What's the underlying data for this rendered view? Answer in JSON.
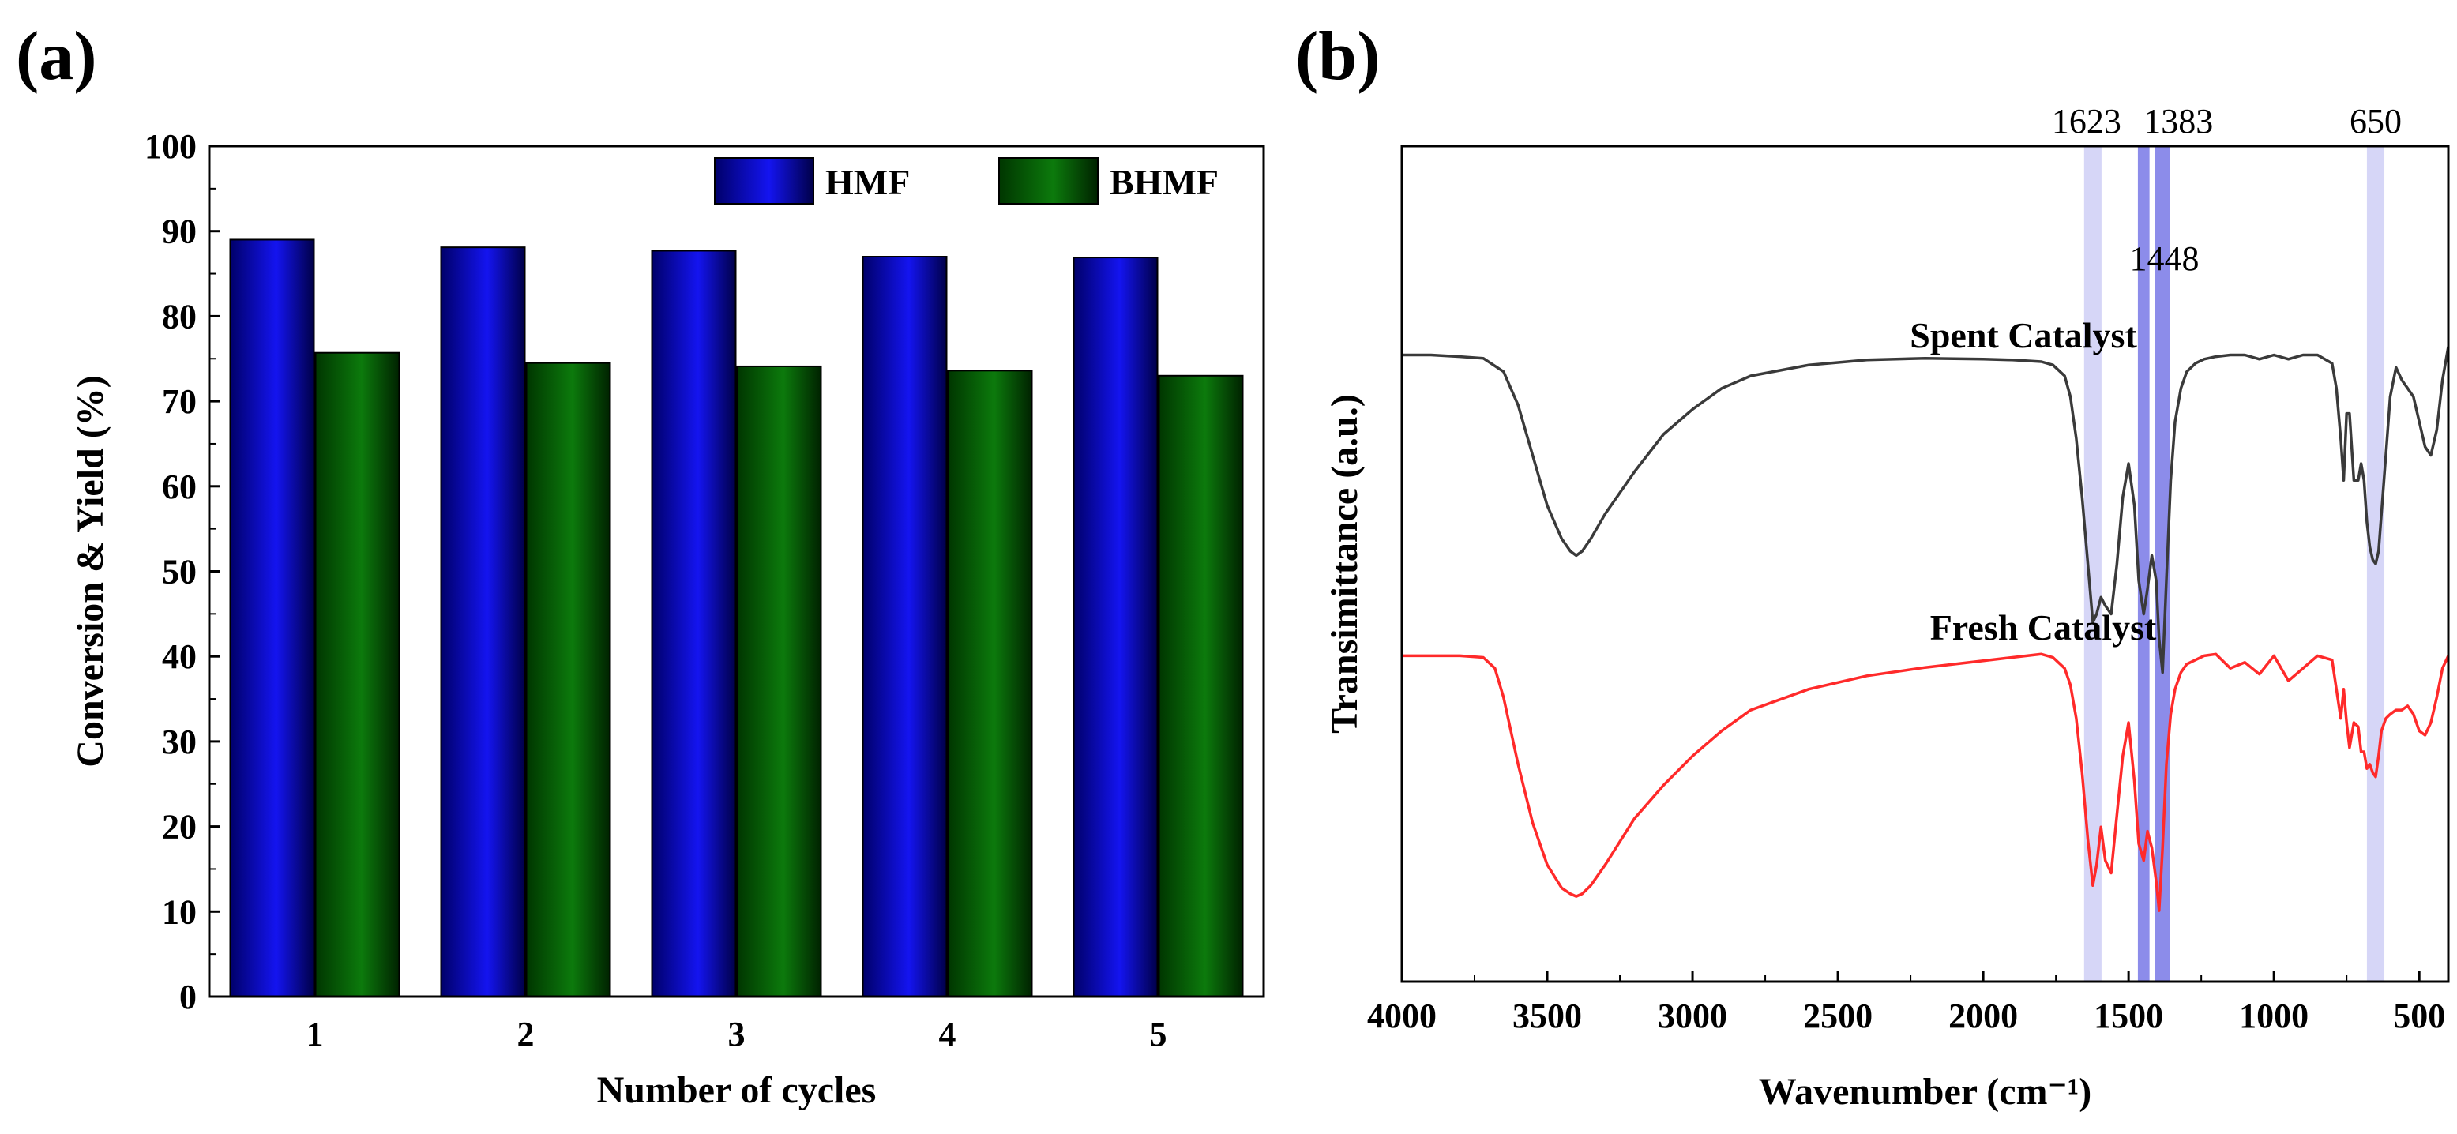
{
  "panel_a": {
    "label": "(a)",
    "colors": {
      "HMF": "#1010e8",
      "BHMF": "#0a6e0a"
    }
  },
  "panel_b": {
    "label": "(b)",
    "colors": {
      "spent": "#3a3a3a",
      "fresh": "#ff2a2a",
      "band_light": "#c8c8f4",
      "band_dark": "#7878e6"
    }
  },
  "chart_data": [
    {
      "type": "bar",
      "title": "",
      "xlabel": "Number of cycles",
      "ylabel": "Conversion & Yield (%)",
      "ylim": [
        0,
        100
      ],
      "yticks": [
        0,
        10,
        20,
        30,
        40,
        50,
        60,
        70,
        80,
        90,
        100
      ],
      "categories": [
        "1",
        "2",
        "3",
        "4",
        "5"
      ],
      "legend_position": "top-right",
      "series": [
        {
          "name": "HMF",
          "values": [
            89.0,
            88.1,
            87.7,
            87.0,
            86.9
          ]
        },
        {
          "name": "BHMF",
          "values": [
            75.7,
            74.5,
            74.1,
            73.6,
            73.0
          ]
        }
      ]
    },
    {
      "type": "line",
      "title": "",
      "xlabel": "Wavenumber (cm⁻¹)",
      "ylabel": "Transimittance (a.u.)",
      "xlim": [
        4000,
        400
      ],
      "xticks": [
        4000,
        3500,
        3000,
        2500,
        2000,
        1500,
        1000,
        500
      ],
      "ylim": [
        0,
        100
      ],
      "y_ticks_shown": false,
      "series": [
        {
          "name": "Spent Catalyst",
          "x": [
            4000,
            3900,
            3800,
            3720,
            3650,
            3600,
            3550,
            3500,
            3450,
            3420,
            3400,
            3380,
            3350,
            3300,
            3200,
            3100,
            3000,
            2900,
            2800,
            2600,
            2400,
            2200,
            2000,
            1900,
            1800,
            1760,
            1720,
            1700,
            1680,
            1660,
            1640,
            1623,
            1610,
            1595,
            1580,
            1560,
            1540,
            1520,
            1500,
            1480,
            1465,
            1448,
            1435,
            1420,
            1405,
            1395,
            1383,
            1370,
            1355,
            1340,
            1320,
            1300,
            1270,
            1240,
            1200,
            1150,
            1100,
            1050,
            1000,
            950,
            900,
            850,
            800,
            785,
            770,
            760,
            750,
            740,
            725,
            710,
            700,
            690,
            680,
            670,
            660,
            650,
            640,
            630,
            615,
            600,
            580,
            560,
            540,
            520,
            500,
            480,
            460,
            440,
            420,
            400
          ],
          "y": [
            75.0,
            75.0,
            74.8,
            74.6,
            73.0,
            69.0,
            63.0,
            57.0,
            53.0,
            51.5,
            51.0,
            51.5,
            53.0,
            56.0,
            61.0,
            65.5,
            68.5,
            71.0,
            72.5,
            73.8,
            74.4,
            74.6,
            74.5,
            74.4,
            74.2,
            73.8,
            72.5,
            70.0,
            65.0,
            58.0,
            50.0,
            43.0,
            44.0,
            46.0,
            45.0,
            44.0,
            50.0,
            58.0,
            62.0,
            57.0,
            48.0,
            44.0,
            47.0,
            51.0,
            48.0,
            41.0,
            37.0,
            48.0,
            60.0,
            67.0,
            71.0,
            73.0,
            74.0,
            74.5,
            74.8,
            75.0,
            75.0,
            74.5,
            75.0,
            74.5,
            75.0,
            75.0,
            74.0,
            71.0,
            65.0,
            60.0,
            68.0,
            68.0,
            60.0,
            60.0,
            62.0,
            60.0,
            55.0,
            52.0,
            50.5,
            50.0,
            51.5,
            56.0,
            63.0,
            70.0,
            73.5,
            72.0,
            71.0,
            70.0,
            67.0,
            64.0,
            63.0,
            66.0,
            72.0,
            76.0
          ]
        },
        {
          "name": "Fresh Catalyst",
          "x": [
            4000,
            3900,
            3800,
            3720,
            3680,
            3650,
            3600,
            3550,
            3500,
            3450,
            3420,
            3400,
            3380,
            3350,
            3300,
            3200,
            3100,
            3000,
            2900,
            2800,
            2600,
            2400,
            2200,
            2000,
            1900,
            1800,
            1760,
            1720,
            1700,
            1680,
            1660,
            1640,
            1623,
            1610,
            1595,
            1580,
            1560,
            1540,
            1520,
            1500,
            1480,
            1465,
            1448,
            1435,
            1420,
            1405,
            1395,
            1383,
            1370,
            1355,
            1340,
            1320,
            1300,
            1270,
            1240,
            1200,
            1150,
            1100,
            1050,
            1000,
            950,
            900,
            850,
            800,
            785,
            770,
            760,
            750,
            740,
            725,
            710,
            700,
            690,
            680,
            670,
            660,
            650,
            640,
            630,
            615,
            600,
            580,
            560,
            540,
            520,
            500,
            480,
            460,
            440,
            420,
            400
          ],
          "y": [
            39.0,
            39.0,
            39.0,
            38.8,
            37.5,
            34.0,
            26.0,
            19.0,
            14.0,
            11.2,
            10.5,
            10.2,
            10.5,
            11.5,
            14.0,
            19.5,
            23.5,
            27.0,
            30.0,
            32.5,
            35.0,
            36.6,
            37.6,
            38.4,
            38.8,
            39.2,
            38.8,
            37.5,
            35.5,
            31.5,
            25.0,
            17.0,
            11.5,
            14.0,
            18.5,
            14.5,
            13.0,
            20.0,
            27.0,
            31.0,
            24.0,
            16.5,
            14.5,
            18.0,
            16.0,
            12.0,
            8.5,
            16.0,
            26.0,
            32.0,
            35.0,
            37.0,
            38.0,
            38.5,
            39.0,
            39.2,
            37.5,
            38.2,
            36.8,
            39.0,
            36.0,
            37.5,
            39.0,
            38.5,
            35.0,
            31.5,
            35.0,
            31.0,
            28.0,
            31.0,
            30.5,
            27.5,
            27.5,
            25.5,
            26.0,
            25.0,
            24.5,
            27.0,
            30.0,
            31.5,
            32.0,
            32.5,
            32.5,
            33.0,
            32.0,
            30.0,
            29.5,
            31.0,
            34.0,
            37.5,
            39.0
          ]
        }
      ],
      "curve_labels": [
        "Spent Catalyst",
        "Fresh Catalyst"
      ],
      "peak_bands": [
        {
          "center": 1623,
          "width": 60,
          "shade": "light",
          "label": "1623"
        },
        {
          "center": 1448,
          "width": 40,
          "shade": "dark",
          "label": "1448"
        },
        {
          "center": 1383,
          "width": 50,
          "shade": "dark",
          "label": "1383"
        },
        {
          "center": 650,
          "width": 60,
          "shade": "light",
          "label": "650"
        }
      ]
    }
  ]
}
